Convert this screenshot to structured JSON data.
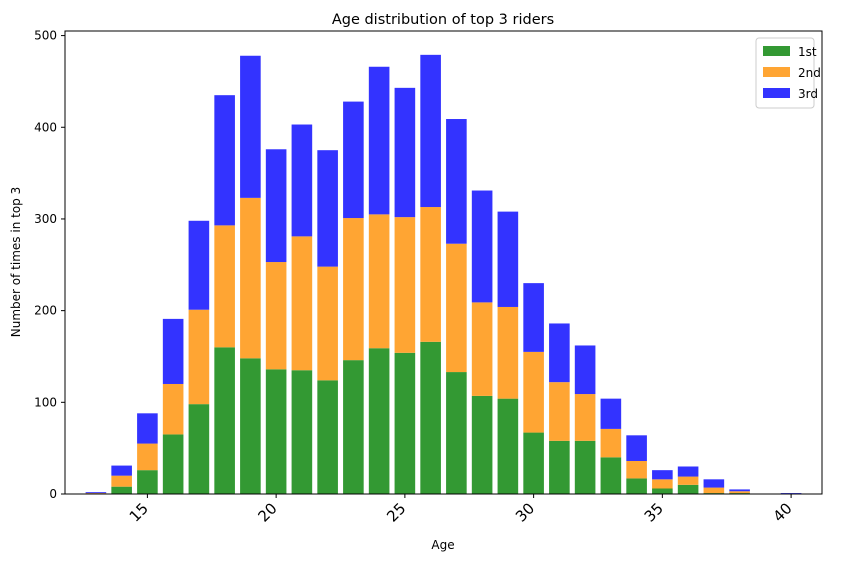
{
  "chart_data": {
    "type": "bar",
    "stacked": true,
    "title": "Age distribution of top 3 riders",
    "xlabel": "Age",
    "ylabel": "Number of times in top 3",
    "xlim": [
      11.8,
      41.2
    ],
    "ylim": [
      0,
      505
    ],
    "xticks": [
      15,
      20,
      25,
      30,
      35,
      40
    ],
    "yticks": [
      0,
      100,
      200,
      300,
      400,
      500
    ],
    "legend_position": "top-right",
    "grid": false,
    "x": [
      13,
      14,
      15,
      16,
      17,
      18,
      19,
      20,
      21,
      22,
      23,
      24,
      25,
      26,
      27,
      28,
      29,
      30,
      31,
      32,
      33,
      34,
      35,
      36,
      37,
      38,
      40
    ],
    "series": [
      {
        "name": "1st",
        "color": "#339933",
        "values": [
          0,
          8,
          26,
          65,
          98,
          160,
          148,
          136,
          135,
          124,
          146,
          159,
          154,
          166,
          133,
          107,
          104,
          67,
          58,
          58,
          40,
          17,
          6,
          10,
          1,
          1,
          0
        ]
      },
      {
        "name": "2nd",
        "color": "#ffa533",
        "values": [
          1,
          12,
          29,
          55,
          103,
          133,
          175,
          117,
          146,
          124,
          155,
          146,
          148,
          147,
          140,
          102,
          100,
          88,
          64,
          51,
          31,
          19,
          10,
          9,
          6,
          2,
          0
        ]
      },
      {
        "name": "3rd",
        "color": "#3333ff",
        "values": [
          1,
          11,
          33,
          71,
          97,
          142,
          155,
          123,
          122,
          127,
          127,
          161,
          141,
          166,
          136,
          122,
          104,
          75,
          64,
          53,
          33,
          28,
          10,
          11,
          9,
          2,
          1
        ]
      }
    ]
  }
}
